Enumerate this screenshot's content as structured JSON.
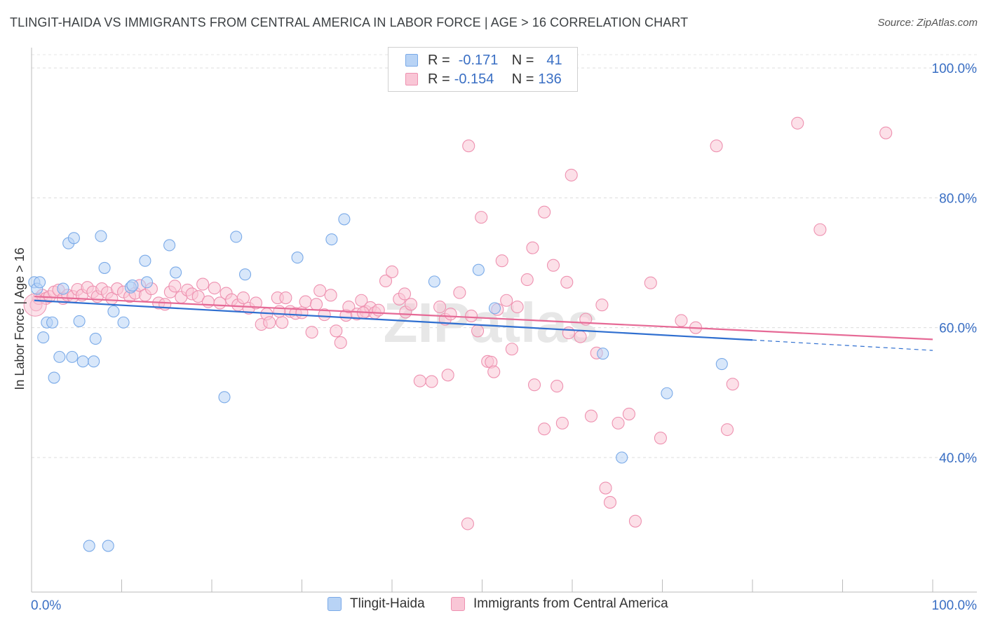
{
  "title": "TLINGIT-HAIDA VS IMMIGRANTS FROM CENTRAL AMERICA IN LABOR FORCE | AGE > 16 CORRELATION CHART",
  "source": "Source: ZipAtlas.com",
  "watermark": "ZIPatlas",
  "legend": {
    "rows": [
      {
        "r_label": "R =",
        "r_value": "-0.171",
        "n_label": "N =",
        "n_value": "41",
        "color": "#b8d3f5",
        "border": "#7aaae8"
      },
      {
        "r_label": "R =",
        "r_value": "-0.154",
        "n_label": "N =",
        "n_value": "136",
        "color": "#f9c6d6",
        "border": "#ee91b0"
      }
    ]
  },
  "bottom_legend": {
    "items": [
      {
        "label": "Tlingit-Haida",
        "color": "#b8d3f5",
        "border": "#7aaae8"
      },
      {
        "label": "Immigrants from Central America",
        "color": "#f9c6d6",
        "border": "#ee91b0"
      }
    ]
  },
  "chart_data": {
    "type": "scatter",
    "title": "TLINGIT-HAIDA VS IMMIGRANTS FROM CENTRAL AMERICA IN LABOR FORCE | AGE > 16 CORRELATION CHART",
    "xlabel": "",
    "ylabel": "In Labor Force | Age > 16",
    "xlim": [
      0,
      100
    ],
    "ylim": [
      20,
      104
    ],
    "x_tick_labels": [
      "0.0%",
      "100.0%"
    ],
    "y_ticks": [
      40,
      60,
      80,
      100
    ],
    "y_tick_labels": [
      "40.0%",
      "60.0%",
      "80.0%",
      "100.0%"
    ],
    "grid": true,
    "legend_position": "top-center",
    "series": [
      {
        "name": "Tlingit-Haida",
        "color": "#7aaae8",
        "fill": "#b8d3f5",
        "line_color": "#2f6fd0",
        "trend": {
          "x0": 0.3,
          "y0": 64.2,
          "x1": 80,
          "y1": 58.1,
          "dash_to_x": 100,
          "dash_to_y": 56.5
        },
        "points": [
          [
            0.3,
            67
          ],
          [
            0.6,
            66
          ],
          [
            0.9,
            67
          ],
          [
            1.3,
            58.5
          ],
          [
            1.7,
            60.8
          ],
          [
            2.3,
            60.8
          ],
          [
            2.5,
            52.3
          ],
          [
            3.1,
            55.5
          ],
          [
            3.5,
            66
          ],
          [
            4.1,
            73
          ],
          [
            4.5,
            55.5
          ],
          [
            4.7,
            73.8
          ],
          [
            5.3,
            61
          ],
          [
            5.7,
            54.8
          ],
          [
            6.9,
            54.8
          ],
          [
            7.1,
            58.3
          ],
          [
            7.7,
            74.1
          ],
          [
            8.1,
            69.2
          ],
          [
            9.1,
            62.5
          ],
          [
            10.2,
            60.8
          ],
          [
            11,
            66.2
          ],
          [
            11.2,
            66.5
          ],
          [
            12.6,
            70.3
          ],
          [
            12.8,
            67
          ],
          [
            15.3,
            72.7
          ],
          [
            16,
            68.5
          ],
          [
            21.4,
            49.3
          ],
          [
            22.7,
            74
          ],
          [
            23.7,
            68.2
          ],
          [
            29.5,
            70.8
          ],
          [
            33.3,
            73.6
          ],
          [
            34.7,
            76.7
          ],
          [
            44.7,
            67.1
          ],
          [
            49.6,
            68.9
          ],
          [
            51.4,
            63
          ],
          [
            63.4,
            56
          ],
          [
            65.5,
            40
          ],
          [
            70.5,
            49.9
          ],
          [
            76.6,
            54.4
          ],
          [
            6.4,
            26.4
          ],
          [
            8.5,
            26.4
          ]
        ]
      },
      {
        "name": "Immigrants from Central America",
        "color": "#ee91b0",
        "fill": "#f9c6d6",
        "line_color": "#e66a96",
        "trend": {
          "x0": 0.3,
          "y0": 64.8,
          "x1": 100,
          "y1": 58.2
        },
        "points": [
          [
            0.5,
            63.5
          ],
          [
            0.8,
            64.5
          ],
          [
            1.2,
            65
          ],
          [
            1.6,
            64.5
          ],
          [
            2,
            64.8
          ],
          [
            2.5,
            65.5
          ],
          [
            3,
            65.8
          ],
          [
            3.5,
            64.5
          ],
          [
            4,
            65
          ],
          [
            4.6,
            64.8
          ],
          [
            5.1,
            65.9
          ],
          [
            5.6,
            65
          ],
          [
            6.2,
            66.2
          ],
          [
            6.8,
            65.5
          ],
          [
            7.3,
            64.8
          ],
          [
            7.8,
            66
          ],
          [
            8.4,
            65.4
          ],
          [
            8.9,
            64.5
          ],
          [
            9.5,
            66
          ],
          [
            10.2,
            65.5
          ],
          [
            10.9,
            64.8
          ],
          [
            11.5,
            65.3
          ],
          [
            12,
            66.5
          ],
          [
            12.6,
            65
          ],
          [
            13.3,
            66
          ],
          [
            14.1,
            63.8
          ],
          [
            14.8,
            63.6
          ],
          [
            15.4,
            65.5
          ],
          [
            15.9,
            66.4
          ],
          [
            16.6,
            64.7
          ],
          [
            17.3,
            65.8
          ],
          [
            17.8,
            65.2
          ],
          [
            18.5,
            64.8
          ],
          [
            19,
            66.7
          ],
          [
            19.6,
            64
          ],
          [
            20.3,
            66.1
          ],
          [
            20.9,
            63.8
          ],
          [
            21.6,
            65.3
          ],
          [
            22.2,
            64.3
          ],
          [
            22.9,
            63.5
          ],
          [
            23.5,
            64.6
          ],
          [
            24.1,
            63
          ],
          [
            24.9,
            63.8
          ],
          [
            25.5,
            60.5
          ],
          [
            26.1,
            62.1
          ],
          [
            26.4,
            60.8
          ],
          [
            27.3,
            64.6
          ],
          [
            27.8,
            60.8
          ],
          [
            28.2,
            64.6
          ],
          [
            28.7,
            62.5
          ],
          [
            29.3,
            62.2
          ],
          [
            30,
            62.3
          ],
          [
            30.4,
            64
          ],
          [
            31.1,
            59.3
          ],
          [
            31.6,
            63.6
          ],
          [
            32,
            65.7
          ],
          [
            32.5,
            62
          ],
          [
            33.2,
            65
          ],
          [
            33.8,
            59.5
          ],
          [
            34.3,
            57.7
          ],
          [
            34.9,
            61.9
          ],
          [
            35.2,
            63.2
          ],
          [
            36.1,
            62.1
          ],
          [
            36.6,
            64.2
          ],
          [
            37.1,
            62.5
          ],
          [
            37.6,
            63.1
          ],
          [
            38.1,
            62.3
          ],
          [
            38.5,
            62.7
          ],
          [
            39.3,
            67.2
          ],
          [
            40,
            68.6
          ],
          [
            40.8,
            64.4
          ],
          [
            41.4,
            65.2
          ],
          [
            41.5,
            62.4
          ],
          [
            42.1,
            63.6
          ],
          [
            43.1,
            51.8
          ],
          [
            44.4,
            51.7
          ],
          [
            45.3,
            63.2
          ],
          [
            45.9,
            61.3
          ],
          [
            46.5,
            62.1
          ],
          [
            47.5,
            65.4
          ],
          [
            48.5,
            88
          ],
          [
            48.8,
            61.8
          ],
          [
            49.5,
            59.5
          ],
          [
            49.9,
            77
          ],
          [
            50.6,
            54.8
          ],
          [
            51,
            54.7
          ],
          [
            51.3,
            53.2
          ],
          [
            51.7,
            62.8
          ],
          [
            52.2,
            70.3
          ],
          [
            52.7,
            64.2
          ],
          [
            53.3,
            56.7
          ],
          [
            53.9,
            63.2
          ],
          [
            55,
            67.4
          ],
          [
            55.6,
            72.3
          ],
          [
            55.8,
            51.2
          ],
          [
            56.9,
            44.4
          ],
          [
            56.9,
            77.8
          ],
          [
            57.9,
            69.6
          ],
          [
            58.3,
            51
          ],
          [
            58.9,
            45.3
          ],
          [
            59.4,
            67
          ],
          [
            59.6,
            59.2
          ],
          [
            59.9,
            83.5
          ],
          [
            60.9,
            58.6
          ],
          [
            61.5,
            61.3
          ],
          [
            62.1,
            46.4
          ],
          [
            62.7,
            56.1
          ],
          [
            63.3,
            63.5
          ],
          [
            63.7,
            35.3
          ],
          [
            64.2,
            33.1
          ],
          [
            65.1,
            45.3
          ],
          [
            66.3,
            46.7
          ],
          [
            67,
            30.2
          ],
          [
            68.7,
            66.9
          ],
          [
            69.8,
            43
          ],
          [
            72.1,
            61.1
          ],
          [
            73.7,
            60
          ],
          [
            76,
            88
          ],
          [
            77.2,
            44.3
          ],
          [
            77.8,
            51.3
          ],
          [
            85,
            91.5
          ],
          [
            87.5,
            75.1
          ],
          [
            94.8,
            90
          ],
          [
            46.2,
            52.7
          ],
          [
            48.4,
            29.8
          ],
          [
            36.8,
            62.3
          ],
          [
            27.5,
            62.5
          ]
        ]
      }
    ]
  }
}
